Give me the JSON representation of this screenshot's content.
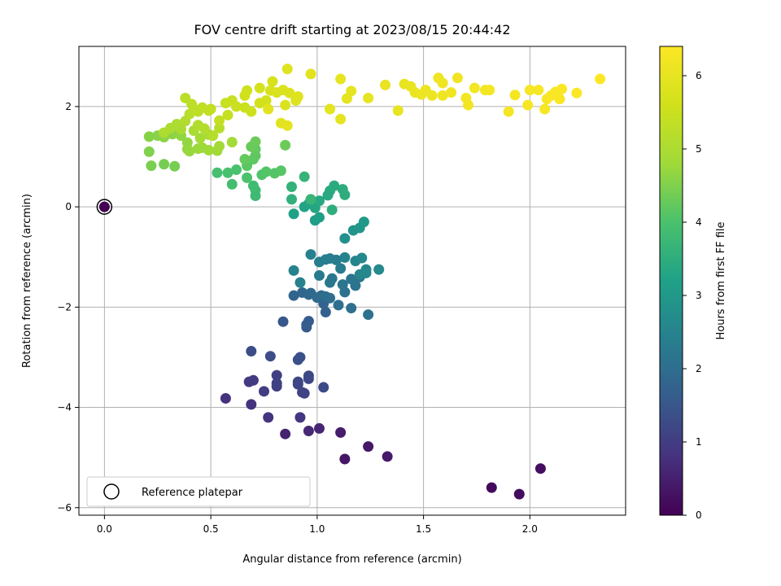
{
  "chart_data": {
    "type": "scatter",
    "title": "FOV centre drift starting at 2023/08/15 20:44:42",
    "xlabel": "Angular distance from reference (arcmin)",
    "ylabel": "Rotation from reference (arcmin)",
    "xlim": [
      -0.12,
      2.45
    ],
    "ylim": [
      -6.15,
      3.2
    ],
    "xticks": [
      0.0,
      0.5,
      1.0,
      1.5,
      2.0
    ],
    "xtick_labels": [
      "0.0",
      "0.5",
      "1.0",
      "1.5",
      "2.0"
    ],
    "yticks": [
      -6,
      -4,
      -2,
      0,
      2
    ],
    "ytick_labels": [
      "−6",
      "−4",
      "−2",
      "0",
      "2"
    ],
    "grid": true,
    "colormap": "viridis",
    "colorbar": {
      "label": "Hours from first FF file",
      "range": [
        0,
        6.4
      ],
      "ticks": [
        0,
        1,
        2,
        3,
        4,
        5,
        6
      ],
      "tick_labels": [
        "0",
        "1",
        "2",
        "3",
        "4",
        "5",
        "6"
      ]
    },
    "legend": {
      "entries": [
        "Reference platepar"
      ],
      "placement": "lower-left"
    },
    "reference_point": {
      "x": 0.0,
      "y": 0.0,
      "hours": 0.0
    },
    "points": [
      [
        1.82,
        -5.6,
        0.15
      ],
      [
        1.95,
        -5.73,
        0.18
      ],
      [
        2.05,
        -5.22,
        0.22
      ],
      [
        1.13,
        -5.03,
        0.35
      ],
      [
        1.24,
        -4.78,
        0.38
      ],
      [
        1.33,
        -4.98,
        0.4
      ],
      [
        1.11,
        -4.5,
        0.45
      ],
      [
        0.85,
        -4.53,
        0.55
      ],
      [
        1.01,
        -4.42,
        0.6
      ],
      [
        0.96,
        -4.47,
        0.63
      ],
      [
        0.57,
        -3.82,
        0.8
      ],
      [
        0.69,
        -3.94,
        0.82
      ],
      [
        0.77,
        -4.2,
        0.85
      ],
      [
        0.92,
        -4.2,
        0.88
      ],
      [
        0.68,
        -3.49,
        0.95
      ],
      [
        0.7,
        -3.46,
        0.97
      ],
      [
        0.75,
        -3.68,
        1.0
      ],
      [
        0.81,
        -3.58,
        1.02
      ],
      [
        0.81,
        -3.36,
        1.05
      ],
      [
        0.81,
        -3.52,
        1.08
      ],
      [
        0.91,
        -3.54,
        1.1
      ],
      [
        0.93,
        -3.7,
        1.12
      ],
      [
        0.94,
        -3.72,
        1.15
      ],
      [
        0.91,
        -3.49,
        1.18
      ],
      [
        0.96,
        -3.43,
        1.2
      ],
      [
        0.96,
        -3.37,
        1.22
      ],
      [
        1.03,
        -3.6,
        1.25
      ],
      [
        0.69,
        -2.88,
        1.3
      ],
      [
        0.78,
        -2.98,
        1.32
      ],
      [
        0.91,
        -3.05,
        1.35
      ],
      [
        0.92,
        -3.0,
        1.38
      ],
      [
        0.84,
        -2.29,
        1.5
      ],
      [
        0.95,
        -2.4,
        1.55
      ],
      [
        0.95,
        -2.35,
        1.58
      ],
      [
        0.96,
        -2.28,
        1.6
      ],
      [
        1.04,
        -2.1,
        1.7
      ],
      [
        1.03,
        -1.93,
        1.75
      ],
      [
        0.89,
        -1.77,
        1.8
      ],
      [
        0.93,
        -1.71,
        1.85
      ],
      [
        0.96,
        -1.75,
        1.88
      ],
      [
        0.97,
        -1.72,
        1.9
      ],
      [
        1.0,
        -1.81,
        1.92
      ],
      [
        1.02,
        -1.77,
        1.95
      ],
      [
        1.04,
        -1.79,
        1.97
      ],
      [
        1.06,
        -1.82,
        2.0
      ],
      [
        1.1,
        -1.96,
        2.02
      ],
      [
        1.16,
        -2.02,
        2.05
      ],
      [
        1.24,
        -2.15,
        2.08
      ],
      [
        1.13,
        -1.7,
        2.1
      ],
      [
        1.18,
        -1.57,
        2.12
      ],
      [
        1.2,
        -1.4,
        2.15
      ],
      [
        1.16,
        -1.44,
        2.18
      ],
      [
        1.12,
        -1.55,
        2.2
      ],
      [
        1.06,
        -1.51,
        2.22
      ],
      [
        1.07,
        -1.43,
        2.25
      ],
      [
        1.01,
        -1.37,
        2.28
      ],
      [
        1.11,
        -1.23,
        2.3
      ],
      [
        1.09,
        -1.06,
        2.32
      ],
      [
        1.06,
        -1.03,
        2.35
      ],
      [
        1.04,
        -1.05,
        2.38
      ],
      [
        1.01,
        -1.1,
        2.4
      ],
      [
        0.97,
        -0.95,
        2.42
      ],
      [
        0.92,
        -1.51,
        2.45
      ],
      [
        0.89,
        -1.27,
        2.48
      ],
      [
        1.13,
        -1.01,
        2.5
      ],
      [
        1.18,
        -1.08,
        2.52
      ],
      [
        1.2,
        -1.35,
        2.55
      ],
      [
        1.23,
        -1.25,
        2.58
      ],
      [
        1.21,
        -1.02,
        2.6
      ],
      [
        1.23,
        -1.32,
        2.62
      ],
      [
        1.29,
        -1.25,
        2.65
      ],
      [
        1.13,
        -0.63,
        2.8
      ],
      [
        1.17,
        -0.47,
        2.9
      ],
      [
        1.2,
        -0.42,
        2.95
      ],
      [
        1.22,
        -0.3,
        3.0
      ],
      [
        0.99,
        -0.27,
        3.1
      ],
      [
        1.01,
        -0.21,
        3.15
      ],
      [
        0.89,
        -0.14,
        3.2
      ],
      [
        0.94,
        0.0,
        3.25
      ],
      [
        0.96,
        0.06,
        3.28
      ],
      [
        0.98,
        0.08,
        3.3
      ],
      [
        0.99,
        -0.02,
        3.32
      ],
      [
        1.01,
        0.12,
        3.35
      ],
      [
        1.05,
        0.23,
        3.38
      ],
      [
        1.06,
        0.32,
        3.4
      ],
      [
        1.08,
        0.42,
        3.42
      ],
      [
        1.12,
        0.35,
        3.45
      ],
      [
        1.13,
        0.24,
        3.48
      ],
      [
        1.07,
        -0.06,
        3.5
      ],
      [
        0.88,
        0.15,
        3.55
      ],
      [
        0.88,
        0.4,
        3.6
      ],
      [
        0.94,
        0.6,
        3.65
      ],
      [
        0.97,
        0.15,
        3.7
      ],
      [
        0.71,
        0.22,
        3.8
      ],
      [
        0.71,
        0.33,
        3.82
      ],
      [
        0.7,
        0.42,
        3.85
      ],
      [
        0.6,
        0.45,
        3.9
      ],
      [
        0.53,
        0.68,
        3.95
      ],
      [
        0.58,
        0.68,
        3.97
      ],
      [
        0.62,
        0.74,
        4.0
      ],
      [
        0.67,
        0.58,
        4.02
      ],
      [
        0.74,
        0.64,
        4.05
      ],
      [
        0.76,
        0.7,
        4.08
      ],
      [
        0.8,
        0.67,
        4.1
      ],
      [
        0.83,
        0.72,
        4.12
      ],
      [
        0.67,
        0.82,
        4.15
      ],
      [
        0.7,
        0.95,
        4.18
      ],
      [
        0.71,
        1.02,
        4.2
      ],
      [
        0.71,
        1.15,
        4.22
      ],
      [
        0.66,
        0.95,
        4.25
      ],
      [
        0.69,
        1.2,
        4.28
      ],
      [
        0.71,
        1.3,
        4.3
      ],
      [
        0.85,
        1.23,
        4.32
      ],
      [
        0.28,
        0.85,
        4.4
      ],
      [
        0.33,
        0.81,
        4.42
      ],
      [
        0.22,
        0.82,
        4.45
      ],
      [
        0.21,
        1.1,
        4.5
      ],
      [
        0.21,
        1.4,
        4.55
      ],
      [
        0.25,
        1.42,
        4.58
      ],
      [
        0.28,
        1.39,
        4.6
      ],
      [
        0.32,
        1.45,
        4.62
      ],
      [
        0.36,
        1.42,
        4.65
      ],
      [
        0.39,
        1.28,
        4.68
      ],
      [
        0.39,
        1.15,
        4.7
      ],
      [
        0.4,
        1.11,
        4.72
      ],
      [
        0.44,
        1.16,
        4.75
      ],
      [
        0.46,
        1.18,
        4.78
      ],
      [
        0.49,
        1.13,
        4.8
      ],
      [
        0.53,
        1.12,
        4.82
      ],
      [
        0.54,
        1.21,
        4.85
      ],
      [
        0.6,
        1.29,
        4.88
      ],
      [
        0.45,
        1.37,
        4.9
      ],
      [
        0.49,
        1.44,
        4.92
      ],
      [
        0.42,
        1.52,
        4.95
      ],
      [
        0.36,
        1.55,
        4.97
      ],
      [
        0.34,
        1.65,
        5.0
      ],
      [
        0.31,
        1.57,
        5.02
      ],
      [
        0.28,
        1.48,
        5.05
      ],
      [
        0.38,
        1.71,
        5.08
      ],
      [
        0.44,
        1.63,
        5.1
      ],
      [
        0.47,
        1.56,
        5.12
      ],
      [
        0.51,
        1.42,
        5.15
      ],
      [
        0.54,
        1.57,
        5.18
      ],
      [
        0.4,
        1.85,
        5.2
      ],
      [
        0.44,
        1.9,
        5.22
      ],
      [
        0.38,
        2.17,
        5.25
      ],
      [
        0.41,
        2.05,
        5.27
      ],
      [
        0.43,
        1.93,
        5.3
      ],
      [
        0.46,
        1.98,
        5.32
      ],
      [
        0.49,
        1.92,
        5.35
      ],
      [
        0.5,
        1.95,
        5.38
      ],
      [
        0.54,
        1.72,
        5.4
      ],
      [
        0.58,
        1.83,
        5.42
      ],
      [
        0.57,
        2.07,
        5.45
      ],
      [
        0.6,
        2.12,
        5.47
      ],
      [
        0.62,
        2.0,
        5.5
      ],
      [
        0.66,
        1.98,
        5.52
      ],
      [
        0.69,
        1.9,
        5.55
      ],
      [
        0.67,
        2.32,
        5.57
      ],
      [
        0.66,
        2.22,
        5.6
      ],
      [
        0.73,
        2.07,
        5.62
      ],
      [
        0.76,
        2.12,
        5.65
      ],
      [
        0.73,
        2.37,
        5.67
      ],
      [
        0.78,
        2.32,
        5.7
      ],
      [
        0.79,
        2.5,
        5.72
      ],
      [
        0.81,
        2.28,
        5.75
      ],
      [
        0.84,
        2.33,
        5.77
      ],
      [
        0.85,
        2.03,
        5.8
      ],
      [
        0.87,
        2.27,
        5.82
      ],
      [
        0.9,
        2.12,
        5.84
      ],
      [
        0.91,
        2.2,
        5.86
      ],
      [
        0.86,
        2.75,
        5.88
      ],
      [
        0.97,
        2.65,
        5.9
      ],
      [
        0.77,
        1.95,
        5.9
      ],
      [
        0.83,
        1.67,
        5.92
      ],
      [
        0.86,
        1.62,
        5.93
      ],
      [
        1.06,
        1.95,
        5.95
      ],
      [
        1.11,
        1.75,
        5.96
      ],
      [
        1.14,
        2.16,
        5.97
      ],
      [
        1.16,
        2.31,
        5.98
      ],
      [
        1.11,
        2.55,
        6.0
      ],
      [
        1.24,
        2.17,
        6.0
      ],
      [
        1.32,
        2.43,
        6.02
      ],
      [
        1.38,
        1.92,
        6.03
      ],
      [
        1.41,
        2.45,
        6.05
      ],
      [
        1.44,
        2.4,
        6.07
      ],
      [
        1.46,
        2.28,
        6.08
      ],
      [
        1.49,
        2.24,
        6.1
      ],
      [
        1.51,
        2.33,
        6.12
      ],
      [
        1.54,
        2.22,
        6.13
      ],
      [
        1.57,
        2.57,
        6.15
      ],
      [
        1.59,
        2.47,
        6.16
      ],
      [
        1.59,
        2.22,
        6.17
      ],
      [
        1.63,
        2.28,
        6.18
      ],
      [
        1.66,
        2.57,
        6.19
      ],
      [
        1.7,
        2.17,
        6.2
      ],
      [
        1.71,
        2.03,
        6.21
      ],
      [
        1.74,
        2.37,
        6.22
      ],
      [
        1.79,
        2.33,
        6.23
      ],
      [
        1.81,
        2.33,
        6.24
      ],
      [
        1.9,
        1.9,
        6.25
      ],
      [
        1.93,
        2.23,
        6.26
      ],
      [
        1.99,
        2.03,
        6.27
      ],
      [
        2.0,
        2.33,
        6.28
      ],
      [
        2.04,
        2.33,
        6.29
      ],
      [
        2.07,
        1.95,
        6.3
      ],
      [
        2.08,
        2.15,
        6.31
      ],
      [
        2.1,
        2.22,
        6.32
      ],
      [
        2.12,
        2.29,
        6.33
      ],
      [
        2.14,
        2.15,
        6.34
      ],
      [
        2.15,
        2.35,
        6.35
      ],
      [
        2.22,
        2.27,
        6.36
      ],
      [
        2.33,
        2.55,
        6.38
      ]
    ]
  }
}
